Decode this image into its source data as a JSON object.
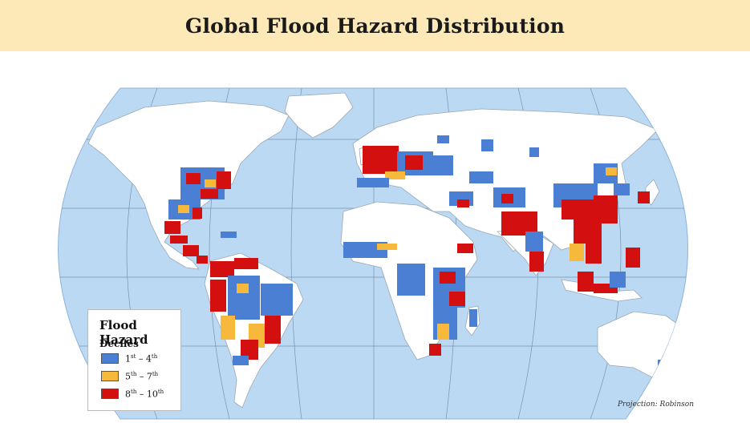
{
  "title": "Global Flood Hazard Distribution",
  "legend": {
    "title": "Flood Hazard",
    "subtitle": "Deciles",
    "items": [
      {
        "from": "1",
        "from_sup": "st",
        "to": "4",
        "to_sup": "th",
        "color": "#4a7fd4"
      },
      {
        "from": "5",
        "from_sup": "th",
        "to": "7",
        "to_sup": "th",
        "color": "#f6b93b"
      },
      {
        "from": "8",
        "from_sup": "th",
        "to": "10",
        "to_sup": "th",
        "color": "#d40f0f"
      }
    ]
  },
  "projection_note": "Projection: Robinson",
  "colors": {
    "ocean": "#bcd9f3",
    "land": "#ffffff",
    "low": "#4a7fd4",
    "mid": "#f6b93b",
    "high": "#d40f0f",
    "title_band": "#fde9b8"
  }
}
